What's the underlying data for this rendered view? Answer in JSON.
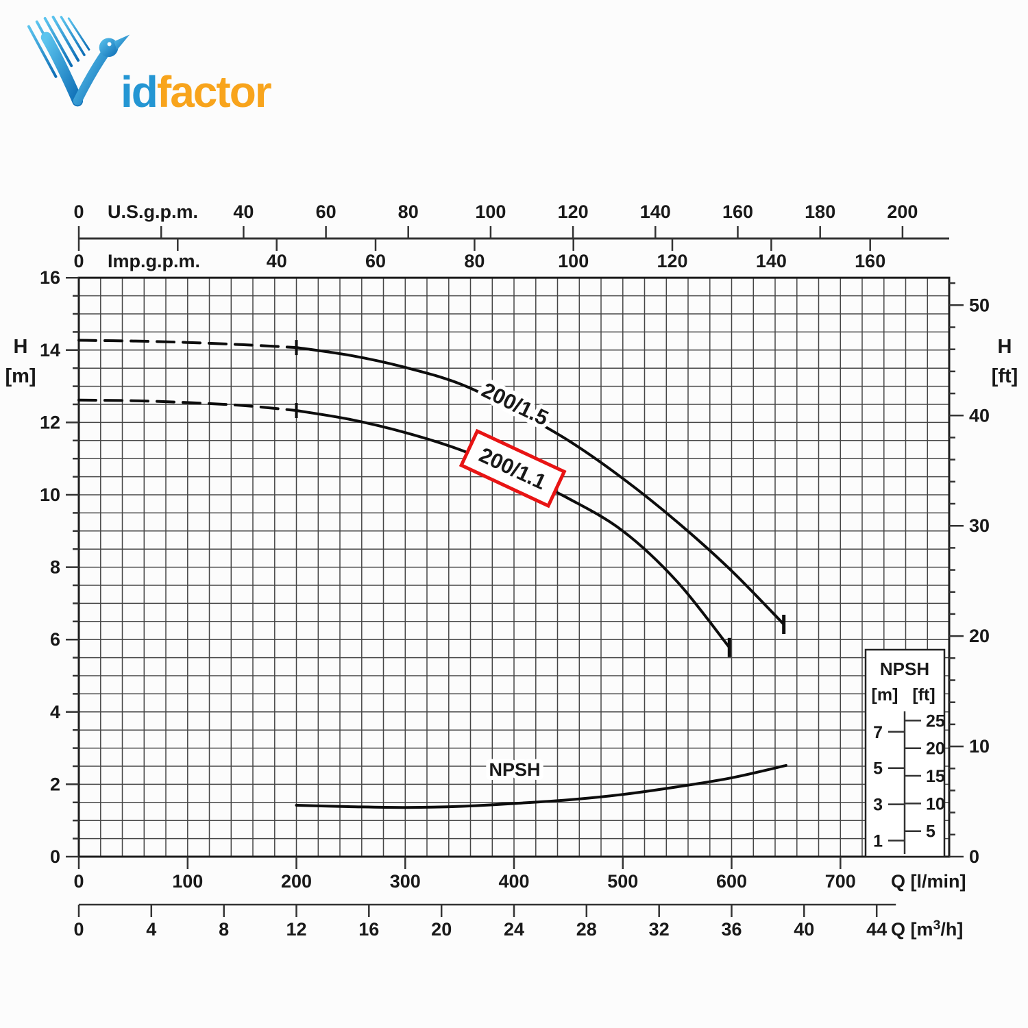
{
  "logo": {
    "full_name": "VidFactor",
    "brand_blue": "id",
    "brand_orange": "factor"
  },
  "chart_data": {
    "type": "line",
    "title": "",
    "x_axes": [
      {
        "id": "us_gpm",
        "label": "U.S.g.p.m.",
        "to_lmin": 3.7854,
        "ticks": [
          0,
          20,
          40,
          60,
          80,
          100,
          120,
          140,
          160,
          180,
          200
        ],
        "labeled": [
          0,
          40,
          60,
          80,
          100,
          120,
          140,
          160,
          180,
          200
        ]
      },
      {
        "id": "imp_gpm",
        "label": "Imp.g.p.m.",
        "to_lmin": 4.5461,
        "ticks": [
          0,
          20,
          40,
          60,
          80,
          100,
          120,
          140,
          160
        ],
        "labeled": [
          0,
          40,
          60,
          80,
          100,
          120,
          140,
          160
        ]
      },
      {
        "id": "q_lmin",
        "label": "Q [l/min]",
        "to_lmin": 1,
        "range": [
          0,
          800
        ],
        "minor_step": 20,
        "ticks": [
          0,
          100,
          200,
          300,
          400,
          500,
          600,
          700
        ],
        "labeled": [
          0,
          100,
          200,
          300,
          400,
          500,
          600,
          700
        ]
      },
      {
        "id": "q_m3h",
        "label": "Q [m³/h]",
        "to_lmin": 16.6667,
        "ticks": [
          0,
          4,
          8,
          12,
          16,
          20,
          24,
          28,
          32,
          36,
          40,
          44
        ],
        "labeled": [
          0,
          4,
          8,
          12,
          16,
          20,
          24,
          28,
          32,
          36,
          40,
          44
        ]
      }
    ],
    "y_axes": [
      {
        "id": "h_m",
        "label_top": "H",
        "label_unit": "[m]",
        "to_m": 1,
        "range": [
          0,
          16
        ],
        "minor_step": 0.5,
        "ticks": [
          16,
          14,
          12,
          10,
          8,
          6,
          4,
          2,
          0
        ]
      },
      {
        "id": "h_ft",
        "label_top": "H",
        "label_unit": "[ft]",
        "to_m": 0.3048,
        "minor_step": 2,
        "minor_max": 52,
        "ticks": [
          50,
          40,
          30,
          20,
          10,
          0
        ]
      }
    ],
    "grid": "minor 20 l/min by 0.5 m, on",
    "series": [
      {
        "name": "200/1.5",
        "kind": "head-curve",
        "highlight": false,
        "dashed_points": [
          [
            0,
            14.27
          ],
          [
            50,
            14.25
          ],
          [
            100,
            14.21
          ],
          [
            150,
            14.15
          ],
          [
            200,
            14.07
          ]
        ],
        "points": [
          [
            200,
            14.07
          ],
          [
            250,
            13.85
          ],
          [
            300,
            13.52
          ],
          [
            350,
            13.07
          ],
          [
            400,
            12.35
          ],
          [
            450,
            11.5
          ],
          [
            500,
            10.45
          ],
          [
            550,
            9.25
          ],
          [
            600,
            7.9
          ],
          [
            648,
            6.42
          ]
        ]
      },
      {
        "name": "200/1.1",
        "kind": "head-curve",
        "highlight": true,
        "dashed_points": [
          [
            0,
            12.62
          ],
          [
            50,
            12.6
          ],
          [
            100,
            12.55
          ],
          [
            150,
            12.47
          ],
          [
            200,
            12.33
          ]
        ],
        "points": [
          [
            200,
            12.33
          ],
          [
            250,
            12.08
          ],
          [
            300,
            11.72
          ],
          [
            350,
            11.25
          ],
          [
            400,
            10.62
          ],
          [
            450,
            9.9
          ],
          [
            500,
            9.0
          ],
          [
            550,
            7.6
          ],
          [
            598,
            5.78
          ]
        ]
      },
      {
        "name": "NPSH",
        "kind": "npsh-curve",
        "highlight": false,
        "points": [
          [
            200,
            1.42
          ],
          [
            250,
            1.38
          ],
          [
            300,
            1.36
          ],
          [
            350,
            1.39
          ],
          [
            400,
            1.47
          ],
          [
            450,
            1.57
          ],
          [
            500,
            1.72
          ],
          [
            550,
            1.93
          ],
          [
            600,
            2.18
          ],
          [
            650,
            2.52
          ]
        ]
      }
    ],
    "npsh_legend": {
      "title": "NPSH",
      "unit_m": "[m]",
      "unit_ft": "[ft]",
      "m_ticks": [
        7,
        5,
        3,
        1
      ],
      "ft_ticks": [
        25,
        20,
        15,
        10,
        5
      ]
    },
    "colors": {
      "curve": "#0d0d0d",
      "grid": "#2e2e2e",
      "axis": "#333333",
      "text": "#191919",
      "highlight_box": "#e81414"
    }
  }
}
